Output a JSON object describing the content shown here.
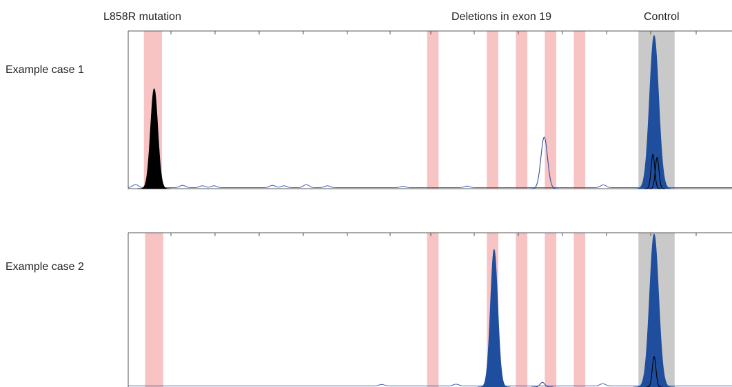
{
  "headers": {
    "l858r": "L858R mutation",
    "deletions": "Deletions in exon 19",
    "control": "Control"
  },
  "chart_data": [
    {
      "type": "area",
      "panel_label": "Example case 1",
      "x_domain": [
        0,
        100
      ],
      "y_domain": [
        0,
        1
      ],
      "highlight_regions": [
        {
          "from": 2.6,
          "to": 5.6,
          "color": "#f7c3c3"
        },
        {
          "from": 49.5,
          "to": 51.4,
          "color": "#f7c3c3"
        },
        {
          "from": 59.4,
          "to": 61.3,
          "color": "#f7c3c3"
        },
        {
          "from": 64.2,
          "to": 66.1,
          "color": "#f7c3c3"
        },
        {
          "from": 69.0,
          "to": 70.9,
          "color": "#f7c3c3"
        },
        {
          "from": 73.8,
          "to": 75.7,
          "color": "#f7c3c3"
        },
        {
          "from": 84.5,
          "to": 90.5,
          "color": "#c9c9c9"
        }
      ],
      "peaks": [
        {
          "style": "fill",
          "color": "#000000",
          "center": 4.3,
          "height": 0.64,
          "width": 0.6
        },
        {
          "style": "line",
          "color": "#2e4fa8",
          "center": 68.9,
          "height": 0.33,
          "width": 0.55
        },
        {
          "style": "fill",
          "color": "#1f4e9e",
          "center": 87.1,
          "height": 0.98,
          "width": 0.75
        },
        {
          "style": "line",
          "color": "#000000",
          "center": 86.9,
          "height": 0.22,
          "width": 0.3
        },
        {
          "style": "line",
          "color": "#000000",
          "center": 87.6,
          "height": 0.2,
          "width": 0.3
        }
      ],
      "noise": [
        {
          "x": 1.2,
          "h": 0.02
        },
        {
          "x": 9.0,
          "h": 0.015
        },
        {
          "x": 12.3,
          "h": 0.012
        },
        {
          "x": 14.2,
          "h": 0.012
        },
        {
          "x": 23.9,
          "h": 0.015
        },
        {
          "x": 25.8,
          "h": 0.012
        },
        {
          "x": 29.5,
          "h": 0.02
        },
        {
          "x": 33.0,
          "h": 0.012
        },
        {
          "x": 45.5,
          "h": 0.008
        },
        {
          "x": 56.1,
          "h": 0.01
        },
        {
          "x": 78.7,
          "h": 0.018
        }
      ]
    },
    {
      "type": "area",
      "panel_label": "Example case 2",
      "x_domain": [
        0,
        100
      ],
      "y_domain": [
        0,
        1
      ],
      "highlight_regions": [
        {
          "from": 2.8,
          "to": 5.8,
          "color": "#f7c3c3"
        },
        {
          "from": 49.5,
          "to": 51.4,
          "color": "#f7c3c3"
        },
        {
          "from": 59.4,
          "to": 61.3,
          "color": "#f7c3c3"
        },
        {
          "from": 64.2,
          "to": 66.1,
          "color": "#f7c3c3"
        },
        {
          "from": 69.0,
          "to": 70.9,
          "color": "#f7c3c3"
        },
        {
          "from": 73.8,
          "to": 75.7,
          "color": "#f7c3c3"
        },
        {
          "from": 84.5,
          "to": 90.5,
          "color": "#c9c9c9"
        }
      ],
      "peaks": [
        {
          "style": "fill",
          "color": "#1f4e9e",
          "center": 60.6,
          "height": 0.9,
          "width": 0.6
        },
        {
          "style": "fill",
          "color": "#1f4e9e",
          "center": 87.1,
          "height": 1.0,
          "width": 0.75
        },
        {
          "style": "line",
          "color": "#000000",
          "center": 87.1,
          "height": 0.2,
          "width": 0.3
        },
        {
          "style": "line",
          "color": "#2e4fa8",
          "center": 68.6,
          "height": 0.03,
          "width": 0.4
        }
      ],
      "noise": [
        {
          "x": 42.0,
          "h": 0.01
        },
        {
          "x": 54.3,
          "h": 0.012
        },
        {
          "x": 78.6,
          "h": 0.015
        }
      ]
    }
  ]
}
